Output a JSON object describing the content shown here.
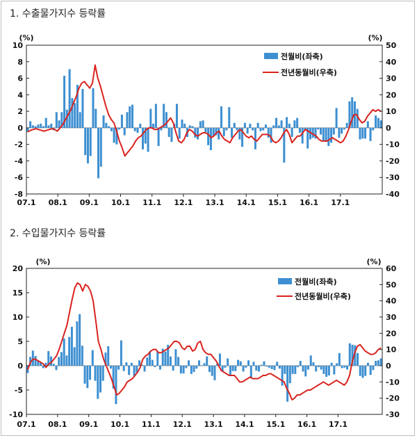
{
  "chart_data": [
    {
      "type": "bar+line",
      "title": "1. 수출물가지수 등락률",
      "left_unit": "(%)",
      "right_unit": "(%)",
      "ylim_left": [
        -8,
        10
      ],
      "yticks_left": [
        "10",
        "8",
        "6",
        "4",
        "2",
        "0",
        "-2",
        "-4",
        "-6",
        "-8"
      ],
      "ylim_right": [
        -40,
        50
      ],
      "yticks_right": [
        "50",
        "40",
        "30",
        "20",
        "10",
        "0",
        "-10",
        "-20",
        "-30",
        "-40"
      ],
      "x_labels": [
        "07.1",
        "08.1",
        "09.1",
        "10.1",
        "11.1",
        "12.1",
        "13.1",
        "14.1",
        "15.1",
        "16.1",
        "17.1"
      ],
      "bar_series": {
        "name": "전월비(좌축)",
        "color": "#3d8fd1",
        "values": [
          -0.5,
          0.8,
          0.3,
          0.2,
          0.4,
          0.5,
          0.2,
          1.2,
          0.3,
          0.5,
          -0.3,
          1.9,
          0.9,
          1.9,
          6.3,
          2.2,
          7.1,
          3.6,
          3.0,
          5.2,
          1.9,
          4.7,
          -3.3,
          -4.3,
          -3.4,
          4.8,
          2.3,
          -6.1,
          -4.7,
          1.5,
          0.6,
          0.2,
          -0.4,
          -1.8,
          -2.0,
          -0.2,
          1.6,
          -0.9,
          1.9,
          2.6,
          2.8,
          -0.4,
          -0.6,
          0.5,
          -2.6,
          -1.9,
          -2.9,
          2.3,
          0.5,
          2.9,
          -2.2,
          -0.3,
          2.9,
          1.9,
          -1.1,
          -1.7,
          0.5,
          2.9,
          -1.3,
          1.0,
          0.5,
          -1.1,
          0.3,
          0.2,
          -1.2,
          -1.4,
          0.8,
          0.9,
          -0.5,
          -2.1,
          -2.7,
          -1.0,
          -0.9,
          -1.4,
          2.6,
          -1.0,
          -0.3,
          2.5,
          -1.2,
          0.6,
          -0.3,
          -1.4,
          -2.3,
          0.6,
          -0.7,
          0.5,
          -0.3,
          -2.6,
          0.6,
          -0.4,
          -0.3,
          0.4,
          -1.2,
          -1.8,
          0.3,
          1.2,
          0.3,
          0.9,
          -4.2,
          1.3,
          0.5,
          -1.1,
          0.9,
          1.2,
          -0.6,
          -1.9,
          -0.3,
          -2.5,
          -1.4,
          -1.2,
          -1.3,
          -0.2,
          -0.8,
          -1.6,
          -1.7,
          -2.2,
          -1.8,
          -0.8,
          2.4,
          -1.2,
          -0.7,
          -0.2,
          0.6,
          3.2,
          3.7,
          3.2,
          2.3,
          -1.4,
          -1.3,
          -1.3,
          0.8,
          -1.6,
          -0.3,
          1.5,
          1.2,
          0.9
        ],
        "line_color": "#d9221d"
      },
      "line_series": {
        "name": "전년동월비(우축)",
        "color": "#d9221d",
        "values": [
          -2.5,
          -1.5,
          -1,
          -0.5,
          -1,
          -1.5,
          -2,
          -1.5,
          -1,
          -0.5,
          -1,
          -2,
          0,
          2,
          5,
          8,
          11,
          15,
          19,
          24,
          27,
          28,
          26,
          24,
          27,
          38,
          30,
          25,
          19,
          13,
          8,
          5,
          3,
          -2,
          -8,
          -12,
          -17,
          -15,
          -13,
          -11,
          -8,
          -6,
          -5,
          -3,
          -1,
          0,
          0,
          -1,
          -1,
          0,
          1,
          2,
          4,
          6,
          3,
          -3,
          -8,
          -9,
          -7,
          -3,
          -1,
          -2,
          -4,
          -5,
          -4,
          -3,
          -3,
          -4,
          -6,
          -5,
          -3,
          -2,
          -5,
          -7,
          -8,
          -9,
          -6,
          -4,
          -2,
          -1,
          -3,
          -5,
          -6,
          -5,
          -7,
          -8,
          -6,
          -4,
          -4,
          -4,
          -5,
          -8,
          -9,
          -8,
          -6,
          -3,
          -1,
          -4,
          -9,
          -7,
          -5,
          -5,
          -3,
          -1,
          -2,
          -3,
          -4,
          -5,
          -7,
          -8,
          -8,
          -8,
          -7,
          -6,
          -7,
          -8,
          -9,
          -8,
          -5,
          -1,
          4,
          8,
          8,
          5,
          3,
          4,
          7,
          9,
          11,
          10,
          11,
          10
        ]
      }
    },
    {
      "type": "bar+line",
      "title": "2. 수입물가지수 등락률",
      "left_unit": "(%)",
      "right_unit": "(%)",
      "ylim_left": [
        -10,
        20
      ],
      "yticks_left": [
        "20",
        "15",
        "10",
        "5",
        "0",
        "-5",
        "-10"
      ],
      "ylim_right": [
        -30,
        60
      ],
      "yticks_right": [
        "60",
        "50",
        "40",
        "30",
        "20",
        "10",
        "0",
        "-10",
        "-20",
        "-30"
      ],
      "x_labels": [
        "07.1",
        "08.1",
        "09.1",
        "10.1",
        "11.1",
        "12.1",
        "13.1",
        "14.1",
        "15.1",
        "16.1",
        "17.1"
      ],
      "bar_series": {
        "name": "전월비(좌축)",
        "color": "#3d8fd1",
        "values": [
          -1.5,
          1.8,
          3.1,
          2.0,
          1.0,
          0.7,
          -0.5,
          0.6,
          3.0,
          1.9,
          0.4,
          -0.9,
          1.8,
          2.8,
          5.6,
          2.1,
          5.9,
          8.0,
          3.8,
          9.1,
          10.6,
          4.1,
          -3.7,
          -4.6,
          -2.9,
          3.2,
          -3.1,
          -6.8,
          -5.5,
          -3.1,
          2.7,
          4.0,
          -0.6,
          -4.7,
          -7.9,
          -0.8,
          5.2,
          -1.1,
          0.7,
          -1.9,
          0.6,
          -2.1,
          -1.4,
          1.1,
          0.2,
          -1.2,
          1.7,
          2.9,
          1.2,
          -0.3,
          3.0,
          -0.8,
          3.5,
          2.9,
          4.3,
          1.9,
          -1.0,
          3.4,
          1.8,
          -1.6,
          -1.6,
          -0.5,
          1.1,
          -1.7,
          -1.3,
          -0.6,
          1.1,
          0.1,
          0.5,
          1.9,
          -1.3,
          -2.1,
          -3.0,
          0.4,
          2.5,
          -1.2,
          -0.4,
          1.5,
          -2.0,
          -1.1,
          -1.1,
          1.2,
          0.9,
          -1.2,
          -0.4,
          1.1,
          -2.6,
          0.8,
          -1.0,
          -1.2,
          0.2,
          0.9,
          -0.2,
          -0.4,
          -0.7,
          -0.9,
          0.8,
          -0.6,
          -4.1,
          -1.7,
          -7.4,
          -3.6,
          -1.7,
          -1.7,
          -0.3,
          1.0,
          -1.2,
          -2.2,
          -0.8,
          2.1,
          0.7,
          -1.2,
          -0.3,
          -0.8,
          -1.7,
          -2.3,
          -2.0,
          0.6,
          -1.8,
          0.5,
          2.6,
          -0.5,
          -0.4,
          -0.8,
          4.6,
          4.3,
          4.2,
          2.6,
          -2.1,
          -2.5,
          -2.1,
          0.6,
          -1.9,
          -0.9,
          1.0,
          1.1,
          1.5
        ],
        "line_color": "#d9221d"
      },
      "line_series": {
        "name": "전년동월비(우축)",
        "color": "#d9221d",
        "values": [
          -2.5,
          2,
          4,
          4,
          3,
          2,
          1,
          -1,
          1,
          2,
          4,
          6,
          10,
          15,
          20,
          25,
          33,
          41,
          48,
          51,
          50,
          46,
          50,
          49,
          46,
          40,
          28,
          15,
          10,
          4,
          0,
          -4,
          -8,
          -13,
          -18,
          -17,
          -15,
          -13,
          -10,
          -9,
          -8,
          -6,
          -4,
          -1,
          4,
          6,
          7,
          9,
          10,
          10,
          8,
          8,
          9,
          10,
          11,
          13,
          15,
          15,
          14,
          11,
          10,
          12,
          12,
          9,
          10,
          14,
          15,
          10,
          8,
          7,
          7,
          5,
          3,
          0,
          -3,
          -4,
          -5,
          -6,
          -6,
          -6,
          -8,
          -10,
          -10,
          -9,
          -8,
          -7,
          -8,
          -8,
          -8,
          -7,
          -6,
          -6,
          -5,
          -5,
          -6,
          -7,
          -8,
          -9,
          -10,
          -14,
          -17,
          -21,
          -20,
          -18,
          -18,
          -17,
          -16,
          -15,
          -15,
          -14,
          -13,
          -12,
          -11,
          -10,
          -11,
          -12,
          -11,
          -10,
          -9,
          -10,
          -11,
          -12,
          -10,
          -6,
          2,
          8,
          12,
          13,
          11,
          9,
          8,
          7,
          7,
          8,
          10,
          11
        ]
      }
    }
  ]
}
